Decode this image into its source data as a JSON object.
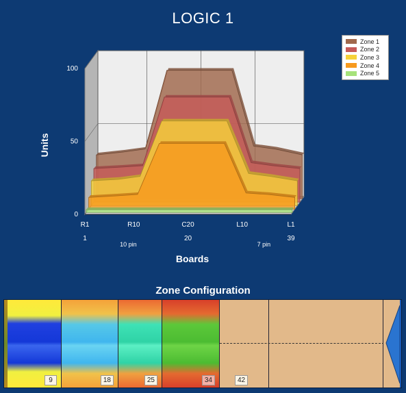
{
  "title": "LOGIC 1",
  "chart_data": {
    "type": "area",
    "title": "LOGIC 1",
    "xlabel": "Boards",
    "ylabel": "Units",
    "ylim": [
      0,
      100
    ],
    "yticks": [
      0,
      50,
      100
    ],
    "x": [
      1,
      6,
      10,
      14,
      26,
      30,
      34,
      39
    ],
    "x_tick_labels": [
      "R1",
      "R10",
      "C20",
      "L10",
      "L1"
    ],
    "x_board_numbers": [
      "1",
      "20",
      "39"
    ],
    "x_pin_labels": [
      "10 pin",
      "7 pin"
    ],
    "grid": true,
    "legend_position": "top-right",
    "series": [
      {
        "name": "Zone 1",
        "color": "#a0684c",
        "values": [
          30,
          32,
          34,
          88,
          88,
          36,
          34,
          30
        ]
      },
      {
        "name": "Zone 2",
        "color": "#c65a58",
        "values": [
          23,
          24,
          25,
          72,
          72,
          27,
          25,
          23
        ]
      },
      {
        "name": "Zone 3",
        "color": "#f6d23a",
        "values": [
          17,
          18,
          20,
          58,
          58,
          22,
          20,
          17
        ]
      },
      {
        "name": "Zone 4",
        "color": "#f79a1e",
        "values": [
          8,
          9,
          10,
          45,
          45,
          11,
          10,
          8
        ]
      },
      {
        "name": "Zone 5",
        "color": "#a6e27a",
        "values": [
          2,
          2,
          2,
          2,
          2,
          2,
          2,
          2
        ]
      }
    ]
  },
  "zone_config": {
    "title": "Zone Configuration",
    "badges": [
      "9",
      "18",
      "25",
      "34",
      "42"
    ]
  }
}
